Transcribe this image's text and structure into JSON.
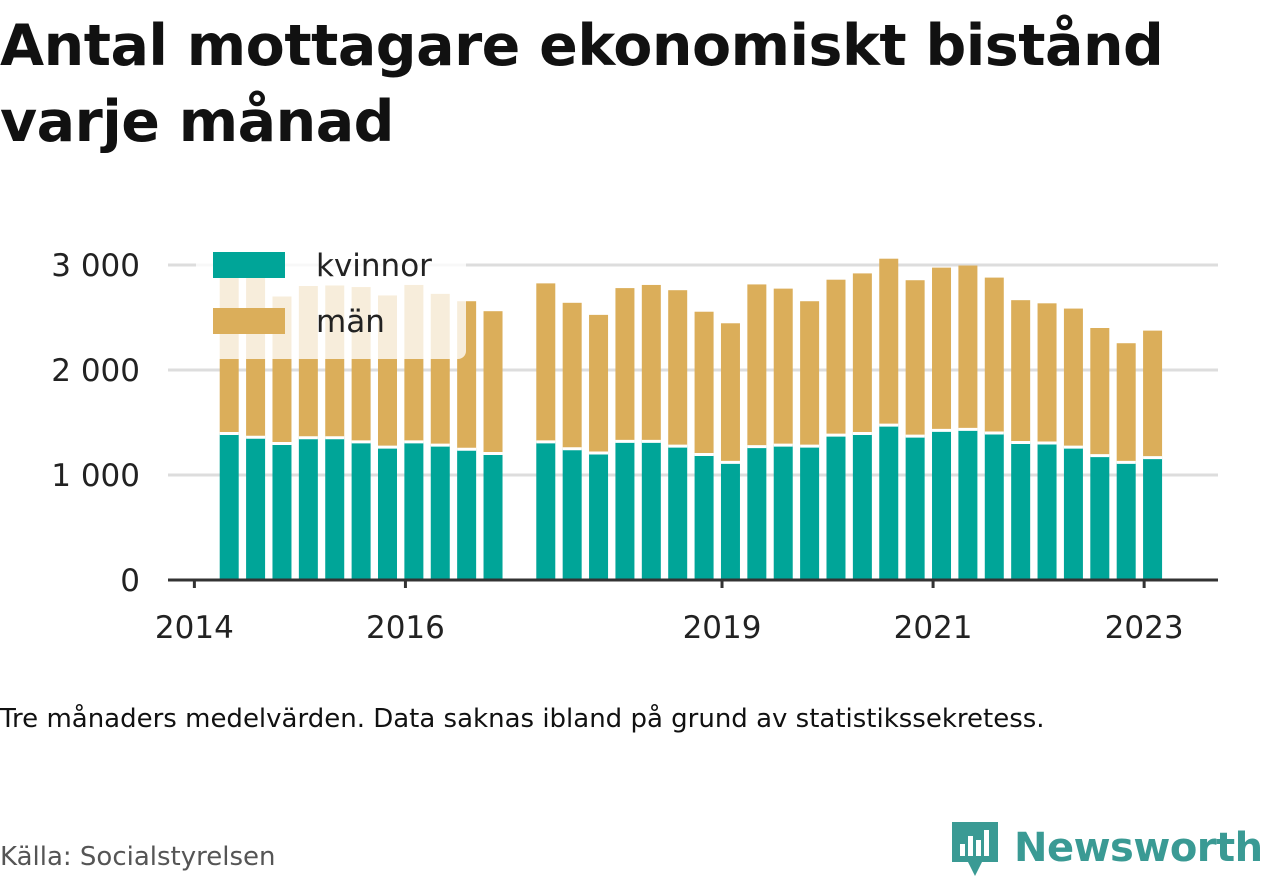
{
  "title": "Antal mottagare ekonomiskt bistånd varje månad",
  "note": "Tre månaders medelvärden. Data saknas ibland på grund av statistikssekretess.",
  "source": "Källa: Socialstyrelsen",
  "brand": {
    "name": "Newsworthy",
    "color": "#3a9a94"
  },
  "colors": {
    "kvinnor": "#00a598",
    "man": "#dbae5a",
    "axis": "#333333",
    "grid": "#dddddd"
  },
  "chart_data": {
    "type": "bar",
    "stacked": true,
    "x_unit": "year",
    "xlim": [
      2013.75,
      2023.7
    ],
    "ylim": [
      0,
      3000
    ],
    "yticks": [
      0,
      1000,
      2000,
      3000
    ],
    "ytick_labels": [
      "0",
      "1 000",
      "2 000",
      "3 000"
    ],
    "xticks": [
      2014,
      2016,
      2019,
      2021,
      2023
    ],
    "xtick_labels": [
      "2014",
      "2016",
      "2019",
      "2021",
      "2023"
    ],
    "grid": true,
    "legend_position": "top-left",
    "series": [
      {
        "name": "kvinnor",
        "color": "#00a598",
        "values": [
          1395,
          1360,
          1300,
          1355,
          1355,
          1315,
          1265,
          1315,
          1285,
          1245,
          1205,
          1315,
          1250,
          1210,
          1320,
          1320,
          1275,
          1195,
          1120,
          1270,
          1285,
          1275,
          1380,
          1395,
          1475,
          1370,
          1425,
          1435,
          1400,
          1310,
          1305,
          1265,
          1185,
          1120,
          1165
        ]
      },
      {
        "name": "män",
        "color": "#dbae5a",
        "values": [
          1495,
          1525,
          1400,
          1445,
          1450,
          1475,
          1445,
          1495,
          1440,
          1410,
          1355,
          1510,
          1390,
          1315,
          1460,
          1490,
          1485,
          1360,
          1325,
          1545,
          1490,
          1380,
          1480,
          1525,
          1585,
          1485,
          1550,
          1560,
          1480,
          1355,
          1330,
          1320,
          1215,
          1135,
          1210
        ]
      }
    ],
    "x": [
      2014.33,
      2014.58,
      2014.83,
      2015.08,
      2015.33,
      2015.58,
      2015.83,
      2016.08,
      2016.33,
      2016.58,
      2016.83,
      2017.33,
      2017.58,
      2017.83,
      2018.08,
      2018.33,
      2018.58,
      2018.83,
      2019.08,
      2019.33,
      2019.58,
      2019.83,
      2020.08,
      2020.33,
      2020.58,
      2020.83,
      2021.08,
      2021.33,
      2021.58,
      2021.83,
      2022.08,
      2022.33,
      2022.58,
      2022.83,
      2023.08
    ]
  }
}
